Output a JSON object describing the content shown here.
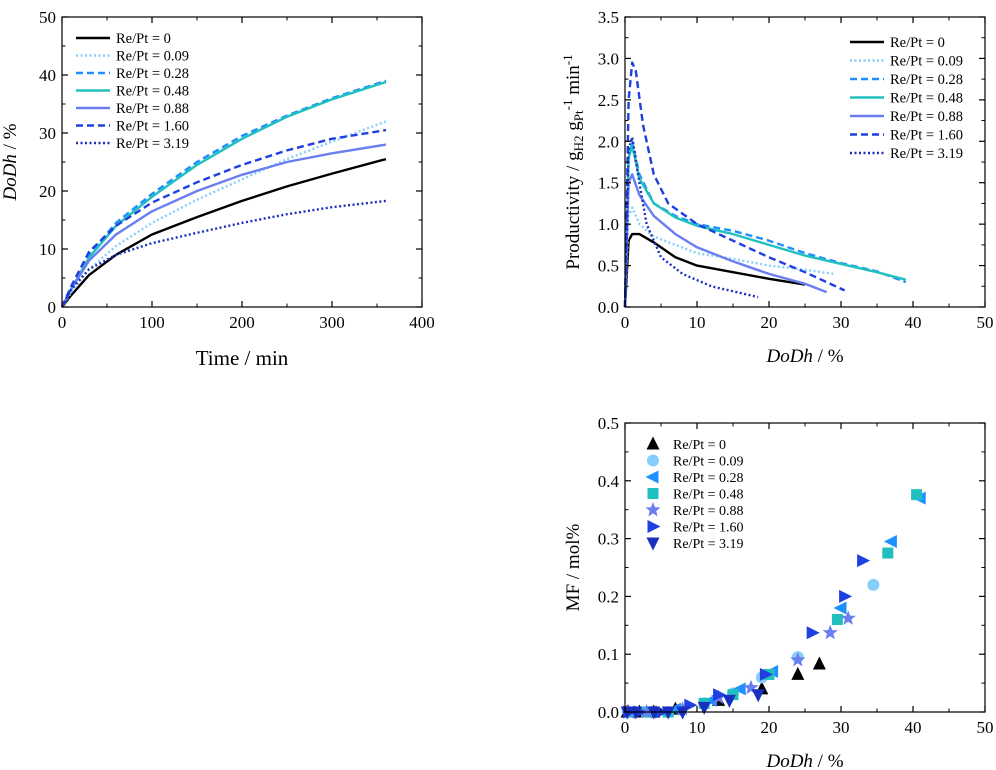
{
  "series_styles": {
    "0": {
      "color": "#000000",
      "dash": "solid"
    },
    "0.09": {
      "color": "#87cefa",
      "dash": "dotted"
    },
    "0.28": {
      "color": "#1e90ff",
      "dash": "dashed"
    },
    "0.48": {
      "color": "#20c0c0",
      "dash": "solid"
    },
    "0.88": {
      "color": "#6a7ef0",
      "dash": "solid"
    },
    "1.60": {
      "color": "#1f3fe0",
      "dash": "dashed"
    },
    "3.19": {
      "color": "#1a2fc0",
      "dash": "dotted"
    }
  },
  "chart_data": [
    {
      "type": "line",
      "xlabel": "Time / min",
      "ylabel": "DoDh / %",
      "xlim": [
        0,
        400
      ],
      "ylim": [
        0,
        50
      ],
      "xticks": [
        "0",
        "100",
        "200",
        "300",
        "400"
      ],
      "yticks": [
        "0",
        "10",
        "20",
        "30",
        "40",
        "50"
      ],
      "legend_position": "top-left",
      "series": [
        {
          "name": "Re/Pt = 0",
          "key": "0",
          "x": [
            0,
            10,
            30,
            60,
            100,
            150,
            200,
            250,
            300,
            360
          ],
          "y": [
            0,
            2,
            5.5,
            9,
            12.5,
            15.5,
            18.3,
            20.8,
            23,
            25.5
          ]
        },
        {
          "name": "Re/Pt = 0.09",
          "key": "0.09",
          "x": [
            0,
            10,
            30,
            60,
            100,
            150,
            200,
            250,
            300,
            360
          ],
          "y": [
            0,
            2.5,
            6.5,
            10.5,
            14.5,
            18.5,
            22,
            25.5,
            28.5,
            32
          ]
        },
        {
          "name": "Re/Pt = 0.28",
          "key": "0.28",
          "x": [
            0,
            10,
            30,
            60,
            100,
            150,
            200,
            250,
            300,
            360
          ],
          "y": [
            0,
            3,
            9,
            14.5,
            19.5,
            25,
            29.5,
            33,
            36,
            39
          ]
        },
        {
          "name": "Re/Pt = 0.48",
          "key": "0.48",
          "x": [
            0,
            10,
            30,
            60,
            100,
            150,
            200,
            250,
            300,
            360
          ],
          "y": [
            0,
            3,
            8.5,
            14,
            19,
            24.5,
            29,
            32.8,
            35.8,
            38.8
          ]
        },
        {
          "name": "Re/Pt = 0.88",
          "key": "0.88",
          "x": [
            0,
            10,
            30,
            60,
            100,
            150,
            200,
            250,
            300,
            360
          ],
          "y": [
            0,
            3,
            8,
            12.5,
            16.5,
            20,
            22.8,
            25,
            26.5,
            28
          ]
        },
        {
          "name": "Re/Pt = 1.60",
          "key": "1.60",
          "x": [
            0,
            10,
            30,
            60,
            100,
            150,
            200,
            250,
            300,
            360
          ],
          "y": [
            0,
            3.5,
            9.5,
            14,
            18,
            21.5,
            24.5,
            27,
            29,
            30.5
          ]
        },
        {
          "name": "Re/Pt = 3.19",
          "key": "3.19",
          "x": [
            0,
            10,
            30,
            60,
            100,
            150,
            200,
            250,
            300,
            360
          ],
          "y": [
            0,
            3,
            6.5,
            9,
            11,
            12.8,
            14.5,
            16,
            17.2,
            18.3
          ]
        }
      ]
    },
    {
      "type": "line",
      "xlabel": "DoDh / %",
      "ylabel": "Productivity / gH2 gPt-1 min-1",
      "xlim": [
        0,
        50
      ],
      "ylim": [
        0,
        3.5
      ],
      "xticks": [
        "0",
        "10",
        "20",
        "30",
        "40",
        "50"
      ],
      "yticks": [
        "0.0",
        "0.5",
        "1.0",
        "1.5",
        "2.0",
        "2.5",
        "3.0",
        "3.5"
      ],
      "legend_position": "top-right",
      "series": [
        {
          "name": "Re/Pt = 0",
          "key": "0",
          "x": [
            0,
            0.5,
            1,
            2,
            4,
            7,
            10,
            15,
            20,
            25
          ],
          "y": [
            0,
            0.8,
            0.88,
            0.88,
            0.78,
            0.6,
            0.5,
            0.42,
            0.34,
            0.27
          ]
        },
        {
          "name": "Re/Pt = 0.09",
          "key": "0.09",
          "x": [
            0,
            0.5,
            1,
            2,
            4,
            7,
            10,
            15,
            20,
            25,
            29
          ],
          "y": [
            0,
            1.1,
            1.2,
            1.0,
            0.85,
            0.75,
            0.65,
            0.58,
            0.5,
            0.45,
            0.4
          ]
        },
        {
          "name": "Re/Pt = 0.28",
          "key": "0.28",
          "x": [
            0,
            0.5,
            1,
            2,
            4,
            7,
            10,
            15,
            20,
            25,
            30,
            35,
            39
          ],
          "y": [
            0,
            1.8,
            2.0,
            1.6,
            1.25,
            1.1,
            1.0,
            0.92,
            0.8,
            0.65,
            0.53,
            0.43,
            0.3
          ]
        },
        {
          "name": "Re/Pt = 0.48",
          "key": "0.48",
          "x": [
            0,
            0.5,
            1,
            2,
            4,
            7,
            10,
            15,
            20,
            25,
            30,
            35,
            39
          ],
          "y": [
            0,
            1.8,
            1.95,
            1.55,
            1.25,
            1.08,
            0.98,
            0.88,
            0.75,
            0.62,
            0.52,
            0.42,
            0.33
          ]
        },
        {
          "name": "Re/Pt = 0.88",
          "key": "0.88",
          "x": [
            0,
            0.5,
            1,
            2,
            4,
            7,
            10,
            15,
            20,
            25,
            28
          ],
          "y": [
            0,
            1.5,
            1.6,
            1.35,
            1.1,
            0.88,
            0.72,
            0.55,
            0.4,
            0.28,
            0.18
          ]
        },
        {
          "name": "Re/Pt = 1.60",
          "key": "1.60",
          "x": [
            0,
            0.5,
            1,
            1.5,
            2.5,
            4,
            6,
            10,
            15,
            20,
            25,
            30.5
          ],
          "y": [
            0,
            2.5,
            2.95,
            2.85,
            2.2,
            1.6,
            1.25,
            1.0,
            0.8,
            0.6,
            0.42,
            0.2
          ]
        },
        {
          "name": "Re/Pt = 3.19",
          "key": "3.19",
          "x": [
            0,
            0.5,
            1,
            2,
            3,
            5,
            8,
            12,
            18.5
          ],
          "y": [
            0,
            1.9,
            2.05,
            1.5,
            1.0,
            0.6,
            0.4,
            0.25,
            0.12
          ]
        }
      ]
    },
    {
      "type": "scatter",
      "xlabel": "DoDh / %",
      "ylabel": "MF / mol%",
      "xlim": [
        0,
        50
      ],
      "ylim": [
        0,
        0.5
      ],
      "xticks": [
        "0",
        "10",
        "20",
        "30",
        "40",
        "50"
      ],
      "yticks": [
        "0.0",
        "0.1",
        "0.2",
        "0.3",
        "0.4",
        "0.5"
      ],
      "legend_position": "top-left",
      "series": [
        {
          "name": "Re/Pt = 0",
          "key": "0",
          "marker": "triangle-up",
          "x": [
            0.3,
            2,
            4,
            7,
            13,
            19,
            24,
            27
          ],
          "y": [
            0,
            0,
            0,
            0.005,
            0.02,
            0.04,
            0.065,
            0.083
          ]
        },
        {
          "name": "Re/Pt = 0.09",
          "key": "0.09",
          "marker": "circle",
          "x": [
            0.5,
            3,
            6,
            11,
            15,
            19,
            24,
            34.5
          ],
          "y": [
            0,
            0,
            0,
            0.015,
            0.032,
            0.06,
            0.095,
            0.22
          ]
        },
        {
          "name": "Re/Pt = 0.28",
          "key": "0.28",
          "marker": "triangle-left",
          "x": [
            0.5,
            3,
            7,
            12,
            16,
            20.5,
            30,
            37,
            41
          ],
          "y": [
            0,
            0,
            0.005,
            0.02,
            0.04,
            0.07,
            0.18,
            0.295,
            0.37
          ]
        },
        {
          "name": "Re/Pt = 0.48",
          "key": "0.48",
          "marker": "square",
          "x": [
            0.5,
            3,
            6,
            11,
            15,
            20,
            29.5,
            36.5,
            40.5
          ],
          "y": [
            0,
            0,
            0,
            0.015,
            0.03,
            0.065,
            0.16,
            0.275,
            0.376
          ]
        },
        {
          "name": "Re/Pt = 0.88",
          "key": "0.88",
          "marker": "star",
          "x": [
            0.5,
            3,
            8,
            13,
            17.5,
            24,
            28.5,
            31
          ],
          "y": [
            0,
            0,
            0.005,
            0.025,
            0.042,
            0.09,
            0.137,
            0.162
          ]
        },
        {
          "name": "Re/Pt = 1.60",
          "key": "1.60",
          "marker": "triangle-right",
          "x": [
            0.5,
            2,
            5,
            9,
            13,
            19.5,
            26,
            30.5,
            33
          ],
          "y": [
            0,
            0,
            0,
            0.012,
            0.03,
            0.065,
            0.137,
            0.2,
            0.262
          ]
        },
        {
          "name": "Re/Pt = 3.19",
          "key": "3.19",
          "marker": "triangle-down",
          "x": [
            0.3,
            1.5,
            4,
            6,
            8,
            11,
            14.5,
            18.5
          ],
          "y": [
            0,
            0,
            0,
            0,
            0,
            0.008,
            0.02,
            0.03
          ]
        }
      ]
    }
  ]
}
